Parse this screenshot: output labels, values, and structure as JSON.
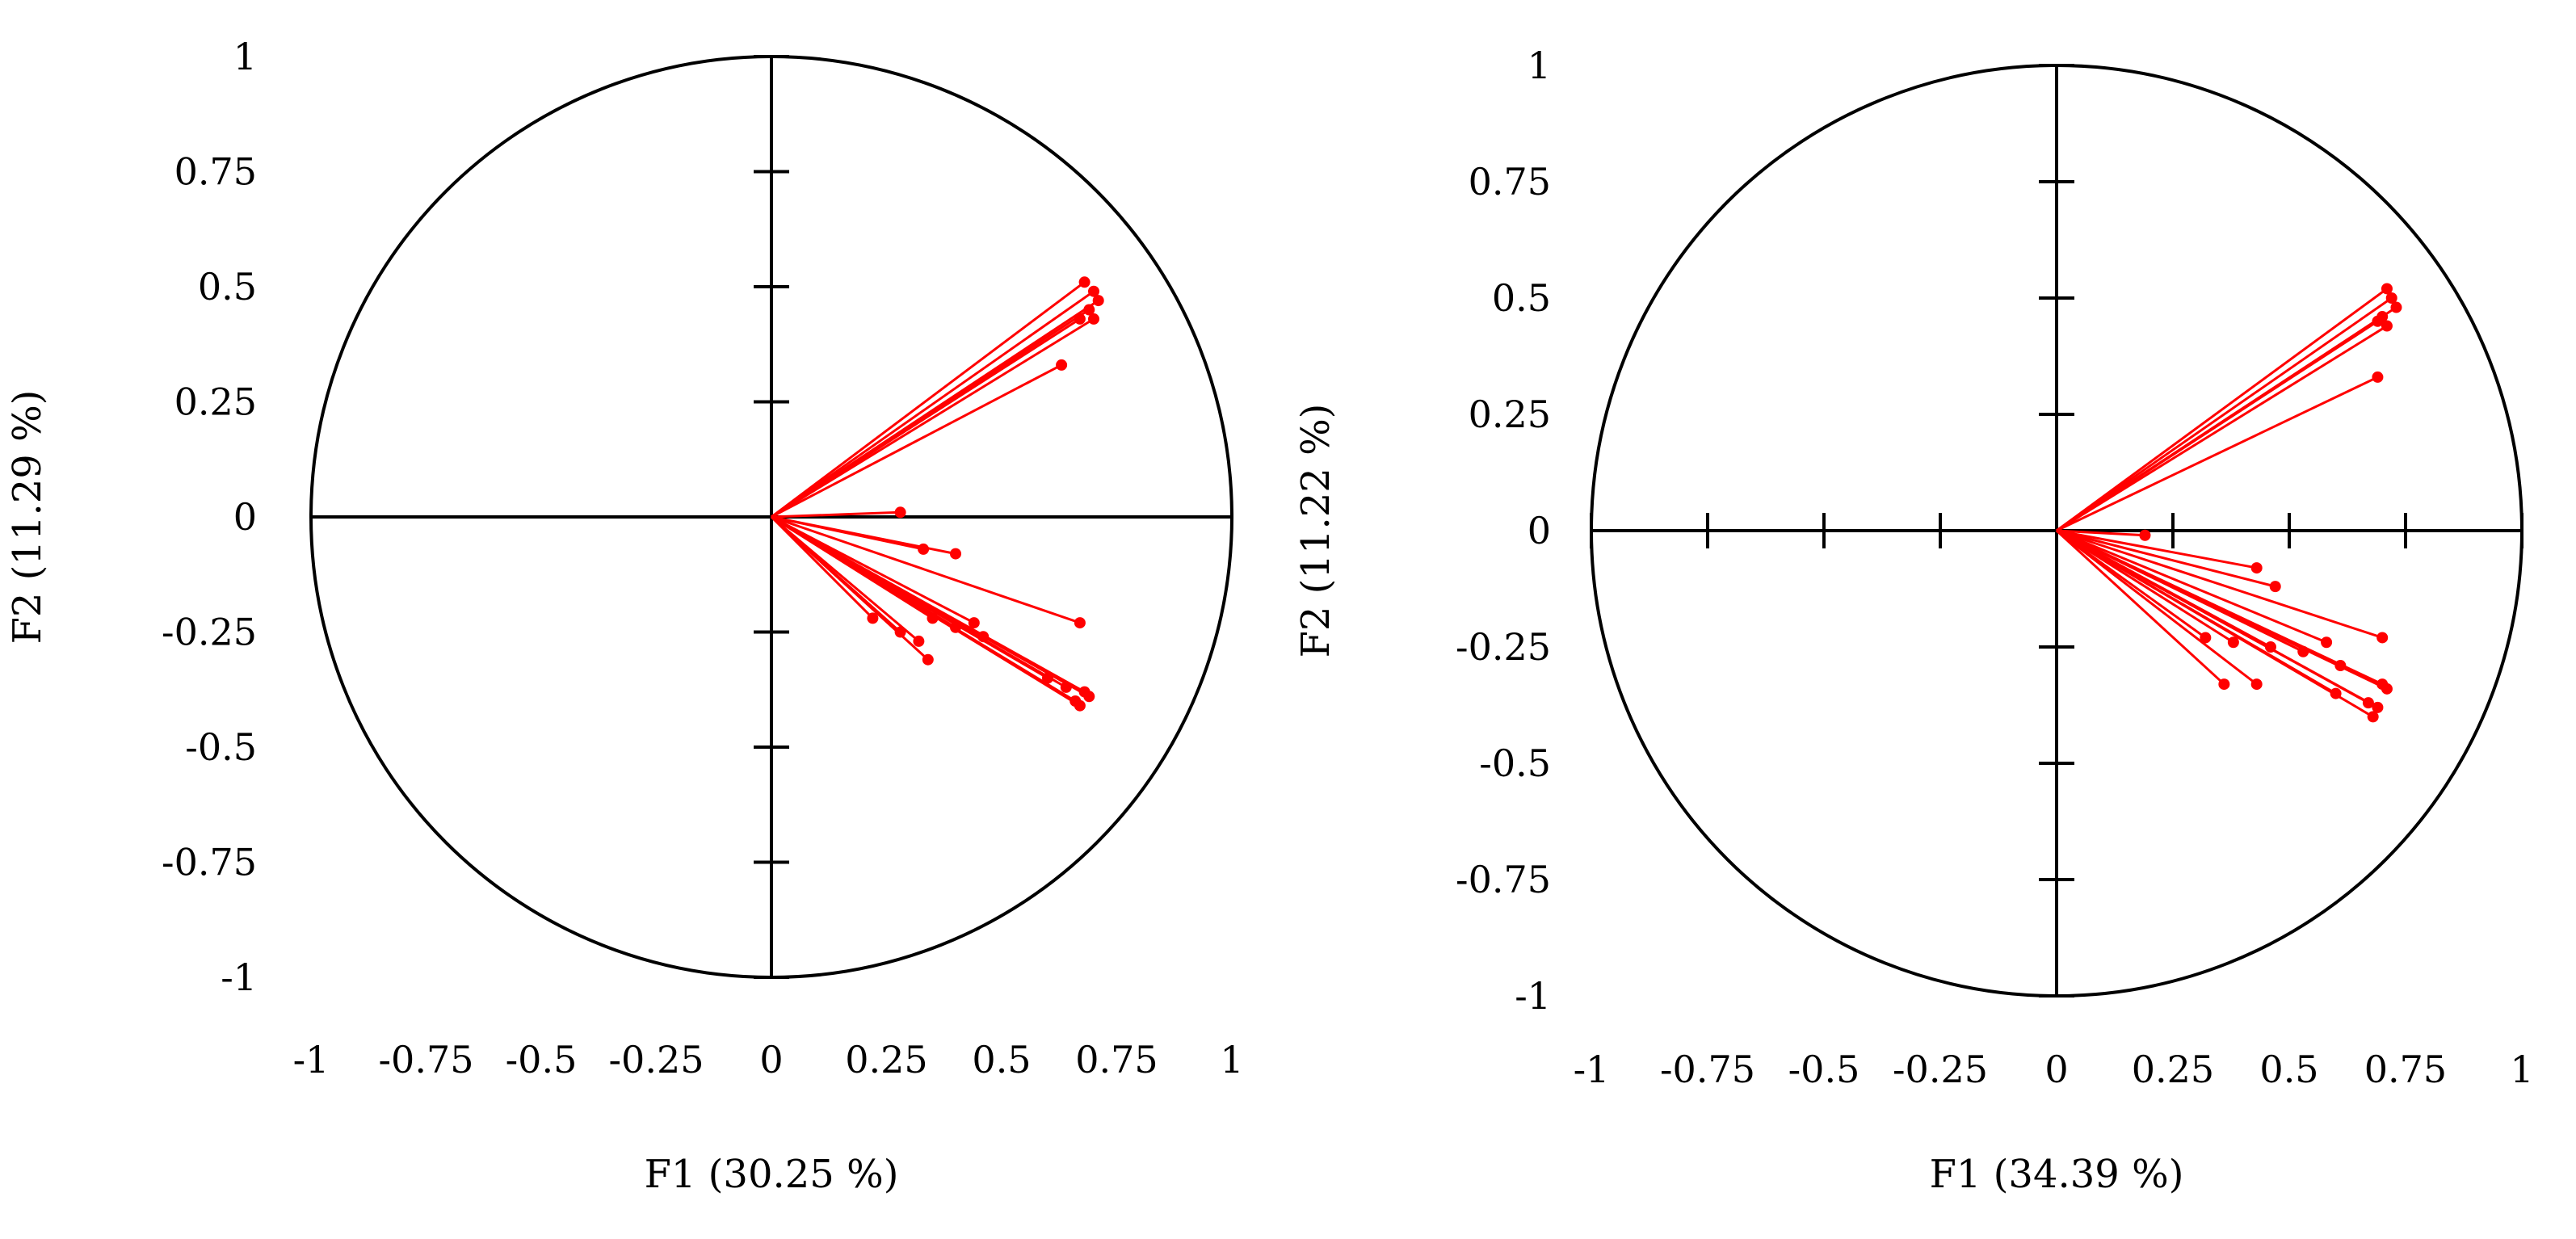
{
  "chart_data": [
    {
      "type": "scatter",
      "subtype": "correlation-circle",
      "title": "",
      "xlabel": "F1 (30.25 %)",
      "ylabel": "F2 (11.29 %)",
      "xlim": [
        -1,
        1
      ],
      "ylim": [
        -1,
        1
      ],
      "xticks": [
        "-1",
        "-0.75",
        "-0.5",
        "-0.25",
        "0",
        "0.25",
        "0.5",
        "0.75",
        "1"
      ],
      "yticks": [
        "1",
        "0.75",
        "0.5",
        "0.25",
        "0",
        "-0.25",
        "-0.5",
        "-0.75",
        "-1"
      ],
      "grid": false,
      "legend": "none",
      "series": [
        {
          "color": "#ff0000",
          "points": [
            {
              "x": 0.68,
              "y": 0.51
            },
            {
              "x": 0.7,
              "y": 0.49
            },
            {
              "x": 0.71,
              "y": 0.47
            },
            {
              "x": 0.69,
              "y": 0.45
            },
            {
              "x": 0.7,
              "y": 0.43
            },
            {
              "x": 0.67,
              "y": 0.43
            },
            {
              "x": 0.63,
              "y": 0.33
            },
            {
              "x": 0.28,
              "y": 0.01
            },
            {
              "x": 0.33,
              "y": -0.07
            },
            {
              "x": 0.4,
              "y": -0.08
            },
            {
              "x": 0.67,
              "y": -0.23
            },
            {
              "x": 0.22,
              "y": -0.22
            },
            {
              "x": 0.28,
              "y": -0.25
            },
            {
              "x": 0.35,
              "y": -0.22
            },
            {
              "x": 0.4,
              "y": -0.24
            },
            {
              "x": 0.44,
              "y": -0.23
            },
            {
              "x": 0.46,
              "y": -0.26
            },
            {
              "x": 0.32,
              "y": -0.27
            },
            {
              "x": 0.34,
              "y": -0.31
            },
            {
              "x": 0.6,
              "y": -0.35
            },
            {
              "x": 0.64,
              "y": -0.37
            },
            {
              "x": 0.68,
              "y": -0.38
            },
            {
              "x": 0.69,
              "y": -0.39
            },
            {
              "x": 0.66,
              "y": -0.4
            },
            {
              "x": 0.67,
              "y": -0.41
            }
          ]
        }
      ]
    },
    {
      "type": "scatter",
      "subtype": "correlation-circle",
      "title": "",
      "xlabel": "F1 (34.39 %)",
      "ylabel": "F2 (11.22 %)",
      "xlim": [
        -1,
        1
      ],
      "ylim": [
        -1,
        1
      ],
      "xticks": [
        "-1",
        "-0.75",
        "-0.5",
        "-0.25",
        "0",
        "0.25",
        "0.5",
        "0.75",
        "1"
      ],
      "yticks": [
        "1",
        "0.75",
        "0.5",
        "0.25",
        "0",
        "-0.25",
        "-0.5",
        "-0.75",
        "-1"
      ],
      "grid": false,
      "legend": "none",
      "series": [
        {
          "color": "#ff0000",
          "points": [
            {
              "x": 0.71,
              "y": 0.52
            },
            {
              "x": 0.72,
              "y": 0.5
            },
            {
              "x": 0.73,
              "y": 0.48
            },
            {
              "x": 0.7,
              "y": 0.46
            },
            {
              "x": 0.71,
              "y": 0.44
            },
            {
              "x": 0.69,
              "y": 0.45
            },
            {
              "x": 0.69,
              "y": 0.33
            },
            {
              "x": 0.19,
              "y": -0.01
            },
            {
              "x": 0.43,
              "y": -0.08
            },
            {
              "x": 0.47,
              "y": -0.12
            },
            {
              "x": 0.7,
              "y": -0.23
            },
            {
              "x": 0.32,
              "y": -0.23
            },
            {
              "x": 0.38,
              "y": -0.24
            },
            {
              "x": 0.46,
              "y": -0.25
            },
            {
              "x": 0.53,
              "y": -0.26
            },
            {
              "x": 0.58,
              "y": -0.24
            },
            {
              "x": 0.61,
              "y": -0.29
            },
            {
              "x": 0.36,
              "y": -0.33
            },
            {
              "x": 0.43,
              "y": -0.33
            },
            {
              "x": 0.7,
              "y": -0.33
            },
            {
              "x": 0.71,
              "y": -0.34
            },
            {
              "x": 0.6,
              "y": -0.35
            },
            {
              "x": 0.67,
              "y": -0.37
            },
            {
              "x": 0.69,
              "y": -0.38
            },
            {
              "x": 0.68,
              "y": -0.4
            }
          ]
        }
      ]
    }
  ]
}
